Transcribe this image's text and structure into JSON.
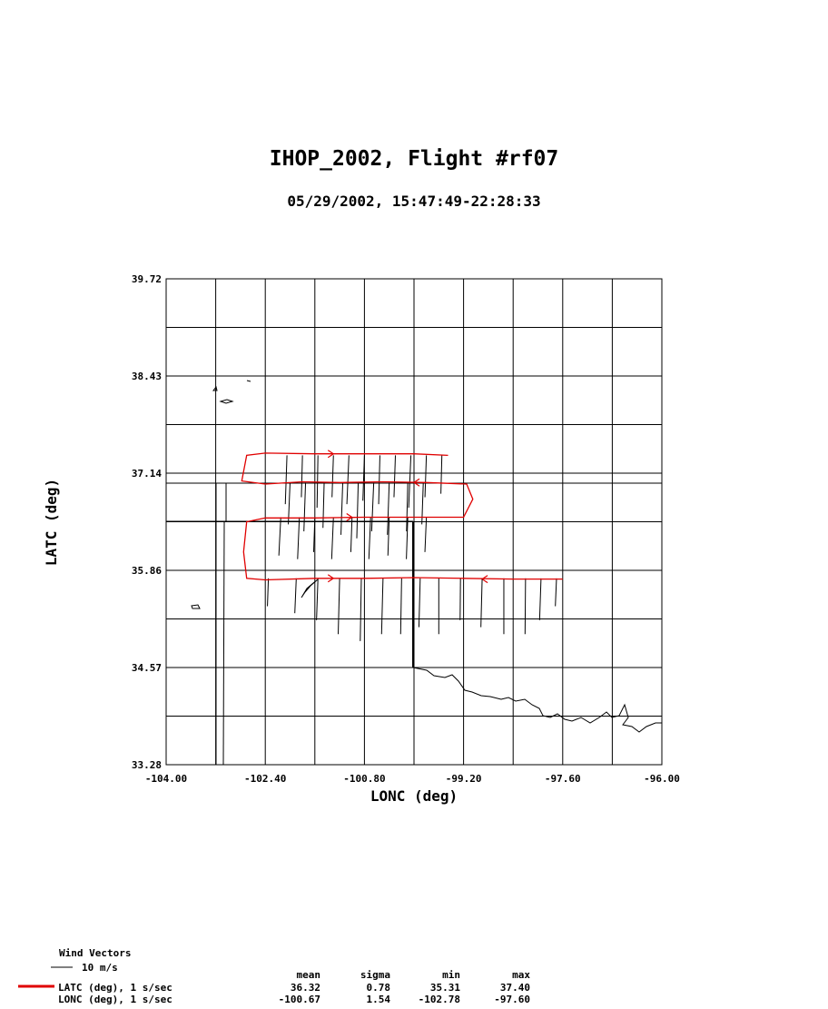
{
  "title": "IHOP_2002, Flight #rf07",
  "subtitle": "05/29/2002, 15:47:49-22:28:33",
  "chart_data": {
    "type": "line",
    "xlabel": "LONC (deg)",
    "ylabel": "LATC (deg)",
    "xlim": [
      -104.0,
      -96.0
    ],
    "ylim": [
      33.28,
      39.72
    ],
    "xticks": [
      "-104.00",
      "-102.40",
      "-100.80",
      "-99.20",
      "-97.60",
      "-96.00"
    ],
    "yticks": [
      "39.72",
      "38.43",
      "37.14",
      "35.86",
      "34.57",
      "33.28"
    ],
    "grid": true,
    "series": [
      {
        "name": "LATC (deg), 1 s/sec",
        "color": "#e00000",
        "x": [
          -97.6,
          -98.4,
          -99.2,
          -100.0,
          -100.8,
          -101.6,
          -102.4,
          -102.7,
          -102.75,
          -102.7,
          -102.4,
          -101.6,
          -100.8,
          -100.0,
          -99.2,
          -99.05,
          -99.15,
          -99.8,
          -100.5,
          -101.2,
          -101.8,
          -102.4,
          -102.78,
          -102.7,
          -102.4,
          -101.6,
          -100.8,
          -100.0,
          -99.45
        ],
        "y": [
          35.74,
          35.74,
          35.75,
          35.76,
          35.75,
          35.75,
          35.73,
          35.75,
          36.1,
          36.5,
          36.55,
          36.55,
          36.56,
          36.56,
          36.56,
          36.8,
          37.0,
          37.02,
          37.03,
          37.02,
          37.03,
          37.0,
          37.04,
          37.38,
          37.41,
          37.4,
          37.4,
          37.4,
          37.38
        ]
      }
    ],
    "wind_vectors": {
      "label": "Wind Vectors",
      "scale_label": "10 m/s",
      "points": [
        [
          -102.05,
          37.38,
          14,
          200
        ],
        [
          -101.8,
          37.38,
          12,
          195
        ],
        [
          -101.55,
          37.38,
          15,
          190
        ],
        [
          -101.3,
          37.38,
          12,
          200
        ],
        [
          -101.05,
          37.38,
          14,
          205
        ],
        [
          -100.8,
          37.38,
          13,
          200
        ],
        [
          -100.55,
          37.38,
          14,
          195
        ],
        [
          -100.3,
          37.38,
          12,
          200
        ],
        [
          -100.05,
          37.38,
          15,
          205
        ],
        [
          -99.8,
          37.38,
          12,
          200
        ],
        [
          -99.55,
          37.38,
          11,
          195
        ],
        [
          -102.0,
          37.02,
          12,
          205
        ],
        [
          -101.75,
          37.02,
          14,
          200
        ],
        [
          -101.45,
          37.02,
          13,
          195
        ],
        [
          -101.15,
          37.02,
          15,
          200
        ],
        [
          -100.9,
          37.02,
          16,
          195
        ],
        [
          -100.65,
          37.02,
          14,
          205
        ],
        [
          -100.4,
          37.02,
          15,
          200
        ],
        [
          -100.1,
          37.02,
          14,
          195
        ],
        [
          -99.85,
          37.02,
          12,
          200
        ],
        [
          -102.15,
          36.56,
          11,
          210
        ],
        [
          -101.85,
          36.56,
          12,
          205
        ],
        [
          -101.6,
          36.56,
          10,
          200
        ],
        [
          -101.3,
          36.56,
          12,
          205
        ],
        [
          -101.0,
          36.56,
          10,
          200
        ],
        [
          -100.7,
          36.56,
          12,
          205
        ],
        [
          -100.4,
          36.56,
          11,
          200
        ],
        [
          -100.1,
          36.56,
          12,
          200
        ],
        [
          -99.8,
          36.56,
          10,
          205
        ],
        [
          -102.35,
          35.75,
          8,
          200
        ],
        [
          -101.9,
          35.75,
          10,
          205
        ],
        [
          -101.55,
          35.75,
          12,
          200
        ],
        [
          -101.2,
          35.75,
          16,
          195
        ],
        [
          -100.85,
          35.75,
          18,
          190
        ],
        [
          -100.5,
          35.75,
          16,
          195
        ],
        [
          -100.2,
          35.75,
          16,
          190
        ],
        [
          -99.9,
          35.75,
          14,
          195
        ],
        [
          -99.6,
          35.75,
          16,
          180
        ],
        [
          -99.25,
          35.75,
          12,
          185
        ],
        [
          -98.9,
          35.75,
          14,
          195
        ],
        [
          -98.55,
          35.75,
          16,
          180
        ],
        [
          -98.2,
          35.75,
          16,
          185
        ],
        [
          -97.95,
          35.75,
          12,
          200
        ],
        [
          -97.7,
          35.75,
          8,
          205
        ]
      ]
    },
    "stats": {
      "headers": [
        "mean",
        "sigma",
        "min",
        "max"
      ],
      "rows": [
        {
          "label": "LATC (deg), 1 s/sec",
          "values": [
            "36.32",
            "0.78",
            "35.31",
            "37.40"
          ]
        },
        {
          "label": "LONC (deg), 1 s/sec",
          "values": [
            "-100.67",
            "1.54",
            "-102.78",
            "-97.60"
          ]
        }
      ]
    }
  }
}
